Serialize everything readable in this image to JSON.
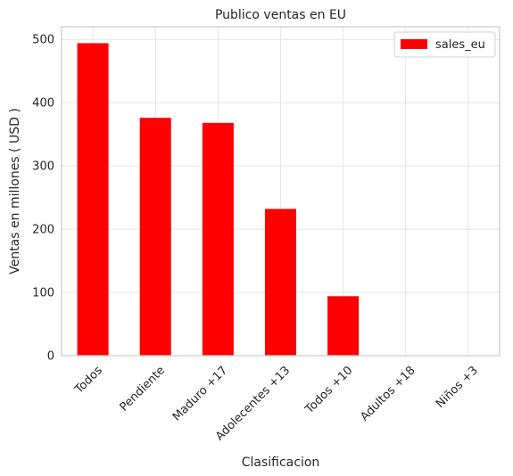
{
  "chart_data": {
    "type": "bar",
    "title": "Publico ventas en EU",
    "xlabel": "Clasificacion",
    "ylabel": "Ventas en millones ( USD )",
    "categories": [
      "Todos",
      "Pendiente",
      "Maduro +17",
      "Adolecentes +13",
      "Todos +10",
      "Adultos +18",
      "Niños +3"
    ],
    "series": [
      {
        "name": "sales_eu",
        "values": [
          494,
          376,
          368,
          232,
          94,
          0.5,
          0.2
        ]
      }
    ],
    "ylim": [
      0,
      520
    ],
    "yticks": [
      0,
      100,
      200,
      300,
      400,
      500
    ],
    "grid": true,
    "legend_position": "top-right",
    "bar_color": "#ff0000"
  }
}
